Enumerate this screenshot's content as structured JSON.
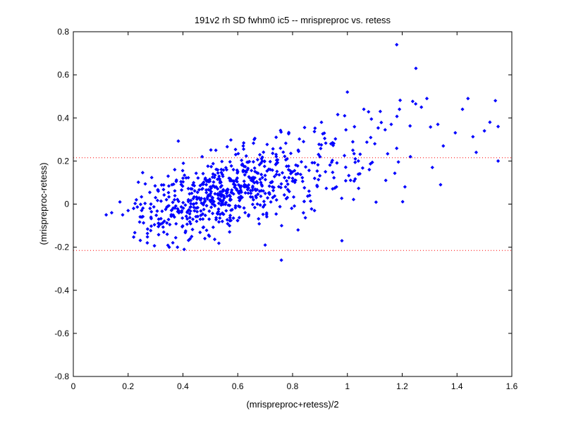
{
  "chart_data": {
    "type": "scatter",
    "title": "191v2 rh SD fwhm0 ic5 -- mrispreproc vs. retess",
    "xlabel": "(mrispreproc+retess)/2",
    "ylabel": "(mrispreproc-retess)",
    "xlim": [
      0,
      1.6
    ],
    "ylim": [
      -0.8,
      0.8
    ],
    "x_ticks": [
      "0",
      "0.2",
      "0.4",
      "0.6",
      "0.8",
      "1",
      "1.2",
      "1.4",
      "1.6"
    ],
    "y_ticks": [
      "0.8",
      "0.6",
      "0.4",
      "0.2",
      "0",
      "-0.2",
      "-0.4",
      "-0.6",
      "-0.8"
    ],
    "grid": false,
    "marker_color": "#0000ff",
    "reference_lines": {
      "values": [
        0.215,
        -0.215
      ],
      "color": "#ff0000",
      "style": "dotted"
    },
    "sample_points": [
      [
        0.12,
        -0.05
      ],
      [
        0.14,
        -0.04
      ],
      [
        0.17,
        0.01
      ],
      [
        0.18,
        -0.05
      ],
      [
        0.2,
        -0.03
      ],
      [
        0.22,
        -0.02
      ],
      [
        0.23,
        0.02
      ],
      [
        0.25,
        -0.06
      ],
      [
        0.27,
        -0.18
      ],
      [
        0.28,
        -0.02
      ],
      [
        0.3,
        0.03
      ],
      [
        0.31,
        0.06
      ],
      [
        0.33,
        -0.13
      ],
      [
        0.35,
        -0.2
      ],
      [
        0.36,
        0.09
      ],
      [
        0.38,
        -0.2
      ],
      [
        0.37,
        0.16
      ],
      [
        0.42,
        0.02
      ],
      [
        0.45,
        -0.08
      ],
      [
        0.47,
        0.22
      ],
      [
        0.48,
        -0.16
      ],
      [
        0.5,
        0.08
      ],
      [
        0.52,
        0.25
      ],
      [
        0.55,
        0.03
      ],
      [
        0.57,
        -0.1
      ],
      [
        0.6,
        0.15
      ],
      [
        0.62,
        0.27
      ],
      [
        0.64,
        -0.05
      ],
      [
        0.66,
        0.3
      ],
      [
        0.68,
        0.06
      ],
      [
        0.7,
        -0.19
      ],
      [
        0.72,
        0.1
      ],
      [
        0.74,
        0.31
      ],
      [
        0.76,
        -0.1
      ],
      [
        0.78,
        0.21
      ],
      [
        0.8,
        0.12
      ],
      [
        0.82,
        -0.12
      ],
      [
        0.84,
        0.29
      ],
      [
        0.86,
        0.06
      ],
      [
        0.88,
        -0.03
      ],
      [
        0.9,
        0.22
      ],
      [
        0.92,
        0.15
      ],
      [
        0.94,
        0.28
      ],
      [
        0.96,
        0.08
      ],
      [
        0.98,
        -0.17
      ],
      [
        0.99,
        0.41
      ],
      [
        1.0,
        0.52
      ],
      [
        1.02,
        0.25
      ],
      [
        1.04,
        0.2
      ],
      [
        1.06,
        0.44
      ],
      [
        1.08,
        0.16
      ],
      [
        1.1,
        0.28
      ],
      [
        1.12,
        0.43
      ],
      [
        1.14,
        0.11
      ],
      [
        1.16,
        0.37
      ],
      [
        1.18,
        0.74
      ],
      [
        1.19,
        0.44
      ],
      [
        1.21,
        0.08
      ],
      [
        1.23,
        0.22
      ],
      [
        1.25,
        0.63
      ],
      [
        1.27,
        0.45
      ],
      [
        1.29,
        0.49
      ],
      [
        1.31,
        0.17
      ],
      [
        1.33,
        0.37
      ],
      [
        1.34,
        0.09
      ],
      [
        1.35,
        0.27
      ],
      [
        1.42,
        0.44
      ],
      [
        1.44,
        0.49
      ],
      [
        1.47,
        0.24
      ],
      [
        1.5,
        0.34
      ],
      [
        1.52,
        0.38
      ],
      [
        1.54,
        0.48
      ],
      [
        1.55,
        0.2
      ],
      [
        1.55,
        0.36
      ]
    ],
    "clusters": [
      {
        "n": 520,
        "x_mean": 0.53,
        "x_sd": 0.15,
        "slope": 0.38,
        "intercept": -0.15,
        "noise_sd": 0.085
      },
      {
        "n": 110,
        "x_mean": 0.82,
        "x_sd": 0.12,
        "slope": 0.35,
        "intercept": -0.14,
        "noise_sd": 0.1
      },
      {
        "n": 40,
        "x_mean": 1.05,
        "x_sd": 0.14,
        "slope": 0.3,
        "intercept": -0.1,
        "noise_sd": 0.13
      }
    ]
  }
}
